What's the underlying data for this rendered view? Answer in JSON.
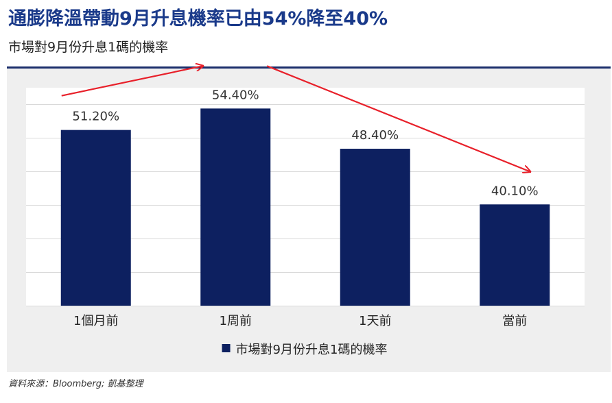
{
  "header": {
    "title": "通膨降溫帶動9月升息機率已由54%降至40%",
    "subtitle": "市場對9月份升息1碼的機率"
  },
  "footer": {
    "source": "資料來源：Bloomberg; 凱基整理"
  },
  "colors": {
    "bar": "#0d2060",
    "arrow": "#e8202a",
    "title": "#1a3a8a",
    "panel": "#efefef"
  },
  "chart_data": {
    "type": "bar",
    "categories": [
      "1個月前",
      "1周前",
      "1天前",
      "當前"
    ],
    "series": [
      {
        "name": "市場對9月份升息1碼的機率",
        "values": [
          51.2,
          54.4,
          48.4,
          40.1
        ],
        "labels": [
          "51.20%",
          "54.40%",
          "48.40%",
          "40.10%"
        ]
      }
    ],
    "ylim": [
      25,
      57.5
    ],
    "grid": true,
    "legend": "bottom-center",
    "annotations": [
      "upward arrow from 1個月前 to 1周前",
      "downward arrow from 1周前 to 當前"
    ]
  }
}
